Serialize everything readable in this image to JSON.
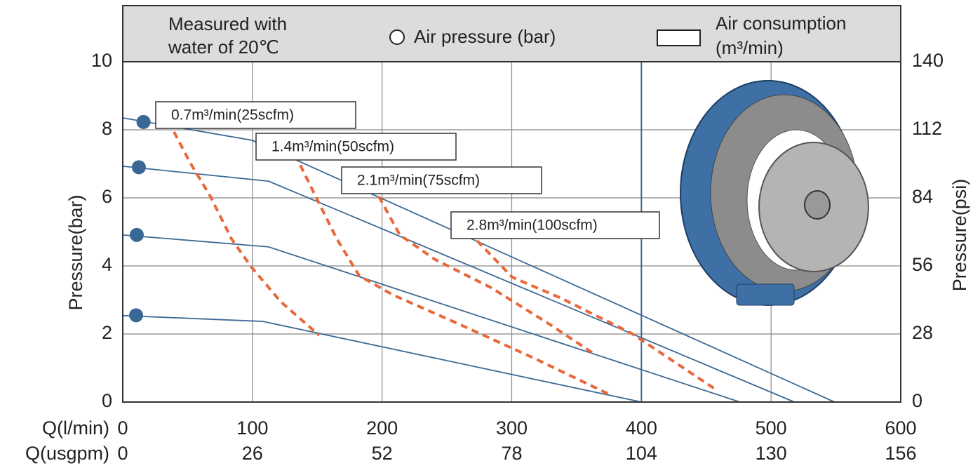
{
  "chart_data": {
    "type": "line",
    "xlabel": "Q(l/min)",
    "x2label": "Q(usgpm)",
    "ylabel": "Pressure(bar)",
    "y2label": "Pressure(psi)",
    "xlim": [
      0,
      600
    ],
    "xticks": [
      0,
      100,
      200,
      300,
      400,
      500,
      600
    ],
    "x2lim": [
      0,
      156
    ],
    "x2ticks": [
      0,
      26,
      52,
      78,
      104,
      130,
      156
    ],
    "ylim": [
      0,
      10
    ],
    "yticks": [
      0,
      2,
      4,
      6,
      8,
      10
    ],
    "y2lim": [
      0,
      140
    ],
    "y2ticks": [
      0,
      28,
      56,
      84,
      112,
      140
    ],
    "grid": true,
    "highlight_x": 400,
    "legend": {
      "note": [
        "Measured with",
        "water of 20℃"
      ],
      "consumption": [
        "Air consumption",
        "(m³/min)"
      ]
    },
    "series": [
      {
        "type": "line",
        "color": "#3d6a95",
        "x": [
          0,
          100,
          549
        ],
        "values": [
          8.35,
          7.69,
          0
        ]
      },
      {
        "type": "line",
        "color": "#3d6a95",
        "x": [
          0,
          112.5,
          518
        ],
        "values": [
          6.93,
          6.49,
          0
        ]
      },
      {
        "type": "line",
        "color": "#3d6a95",
        "x": [
          0,
          112.5,
          476
        ],
        "values": [
          4.91,
          4.56,
          0
        ]
      },
      {
        "type": "line",
        "color": "#3d6a95",
        "x": [
          0,
          108,
          400
        ],
        "values": [
          2.54,
          2.37,
          0
        ]
      },
      {
        "name": "Air pressure (bar)",
        "type": "scatter",
        "color": "#3a6896",
        "x": [
          16,
          12.4,
          10.8,
          10.3
        ],
        "values": [
          8.23,
          6.9,
          4.91,
          2.55
        ]
      },
      {
        "name": "0.7m³/min(25scfm)",
        "type": "line",
        "dashed": true,
        "color": "#e8683a",
        "x": [
          39.5,
          51.4,
          67.6,
          83.8,
          98.9,
          121.8,
          151.5
        ],
        "values": [
          7.94,
          7.07,
          6.04,
          4.8,
          3.98,
          2.95,
          1.96
        ]
      },
      {
        "name": "1.4m³/min(50scfm)",
        "type": "line",
        "dashed": true,
        "color": "#e8683a",
        "x": [
          128.8,
          148.8,
          165,
          182.4,
          208.3,
          257,
          316.6,
          376.1
        ],
        "values": [
          7.59,
          6.04,
          4.8,
          3.71,
          3.15,
          2.33,
          1.3,
          0.21
        ]
      },
      {
        "name": "2.1m³/min(75scfm)",
        "type": "line",
        "dashed": true,
        "color": "#e8683a",
        "x": [
          197.5,
          213.7,
          240.8,
          284.1,
          327.4,
          362.6
        ],
        "values": [
          6.04,
          4.91,
          4.19,
          3.36,
          2.33,
          1.44
        ]
      },
      {
        "name": "2.8m³/min(100scfm)",
        "type": "line",
        "dashed": true,
        "color": "#e8683a",
        "x": [
          273.3,
          300.3,
          338.2,
          392.3,
          457.3
        ],
        "values": [
          4.74,
          3.67,
          3.05,
          2.02,
          0.37
        ]
      }
    ]
  }
}
